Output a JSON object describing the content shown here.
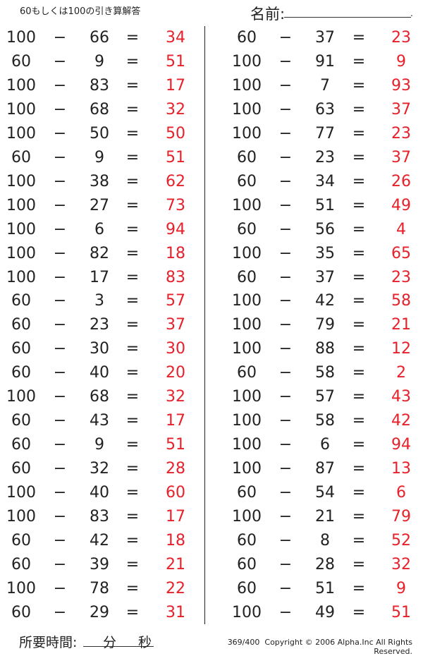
{
  "header": {
    "title": "60もしくは100の引き算解答",
    "name_label": "名前:"
  },
  "colors": {
    "answer": "#e8202a",
    "text": "#222222"
  },
  "operators": {
    "minus": "−",
    "equals": "="
  },
  "problems_left": [
    [
      100,
      66,
      34
    ],
    [
      60,
      9,
      51
    ],
    [
      100,
      83,
      17
    ],
    [
      100,
      68,
      32
    ],
    [
      100,
      50,
      50
    ],
    [
      60,
      9,
      51
    ],
    [
      100,
      38,
      62
    ],
    [
      100,
      27,
      73
    ],
    [
      100,
      6,
      94
    ],
    [
      100,
      82,
      18
    ],
    [
      100,
      17,
      83
    ],
    [
      60,
      3,
      57
    ],
    [
      60,
      23,
      37
    ],
    [
      60,
      30,
      30
    ],
    [
      60,
      40,
      20
    ],
    [
      100,
      68,
      32
    ],
    [
      60,
      43,
      17
    ],
    [
      60,
      9,
      51
    ],
    [
      60,
      32,
      28
    ],
    [
      100,
      40,
      60
    ],
    [
      100,
      83,
      17
    ],
    [
      60,
      42,
      18
    ],
    [
      60,
      39,
      21
    ],
    [
      100,
      78,
      22
    ],
    [
      60,
      29,
      31
    ]
  ],
  "problems_right": [
    [
      60,
      37,
      23
    ],
    [
      100,
      91,
      9
    ],
    [
      100,
      7,
      93
    ],
    [
      100,
      63,
      37
    ],
    [
      100,
      77,
      23
    ],
    [
      60,
      23,
      37
    ],
    [
      60,
      34,
      26
    ],
    [
      100,
      51,
      49
    ],
    [
      60,
      56,
      4
    ],
    [
      100,
      35,
      65
    ],
    [
      60,
      37,
      23
    ],
    [
      100,
      42,
      58
    ],
    [
      100,
      79,
      21
    ],
    [
      100,
      88,
      12
    ],
    [
      60,
      58,
      2
    ],
    [
      100,
      57,
      43
    ],
    [
      100,
      58,
      42
    ],
    [
      100,
      6,
      94
    ],
    [
      100,
      87,
      13
    ],
    [
      60,
      54,
      6
    ],
    [
      100,
      21,
      79
    ],
    [
      60,
      8,
      52
    ],
    [
      60,
      28,
      32
    ],
    [
      60,
      51,
      9
    ],
    [
      100,
      49,
      51
    ]
  ],
  "footer": {
    "time_label": "所要時間:",
    "minutes": "分",
    "seconds": "秒",
    "page": "369/400",
    "copyright": "Copyright © 2006 Alpha.Inc All Rights Reserved."
  }
}
